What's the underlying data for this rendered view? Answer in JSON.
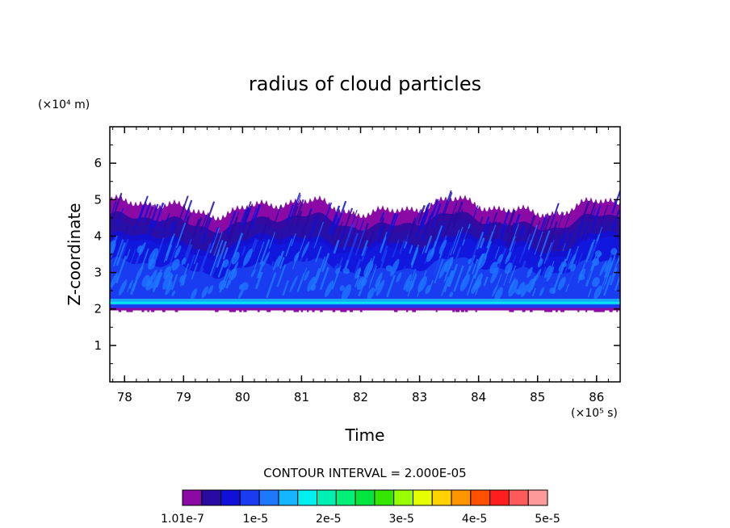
{
  "chart_data": {
    "type": "heatmap",
    "title": "radius of cloud particles",
    "xlabel": "Time",
    "ylabel": "Z-coordinate",
    "x_unit": "(×10⁵ s)",
    "y_unit": "(×10⁴ m)",
    "xlim": [
      77.75,
      86.4
    ],
    "ylim": [
      0,
      7
    ],
    "x_ticks": [
      "78",
      "79",
      "80",
      "81",
      "82",
      "83",
      "84",
      "85",
      "86"
    ],
    "y_ticks": [
      "1",
      "2",
      "3",
      "4",
      "5",
      "6"
    ],
    "contour_interval_text": "CONTOUR INTERVAL = 2.000E-05",
    "cloud_base": 2.0,
    "cloud_top_mean": 4.8,
    "cloud_top_max": 5.15,
    "colorbar": {
      "colors": [
        "#8b0aa5",
        "#2a0aa0",
        "#1010d8",
        "#1a3cf0",
        "#1e78ff",
        "#14b4ff",
        "#00f0f0",
        "#00f0b4",
        "#00f078",
        "#00e63c",
        "#32e600",
        "#96ff00",
        "#e6ff00",
        "#ffd200",
        "#ff9600",
        "#ff5000",
        "#ff1e1e",
        "#ff5a5a",
        "#ff9a9a"
      ],
      "tick_labels": [
        "1.01e-7",
        "1e-5",
        "2e-5",
        "3e-5",
        "4e-5",
        "5e-5"
      ]
    }
  }
}
